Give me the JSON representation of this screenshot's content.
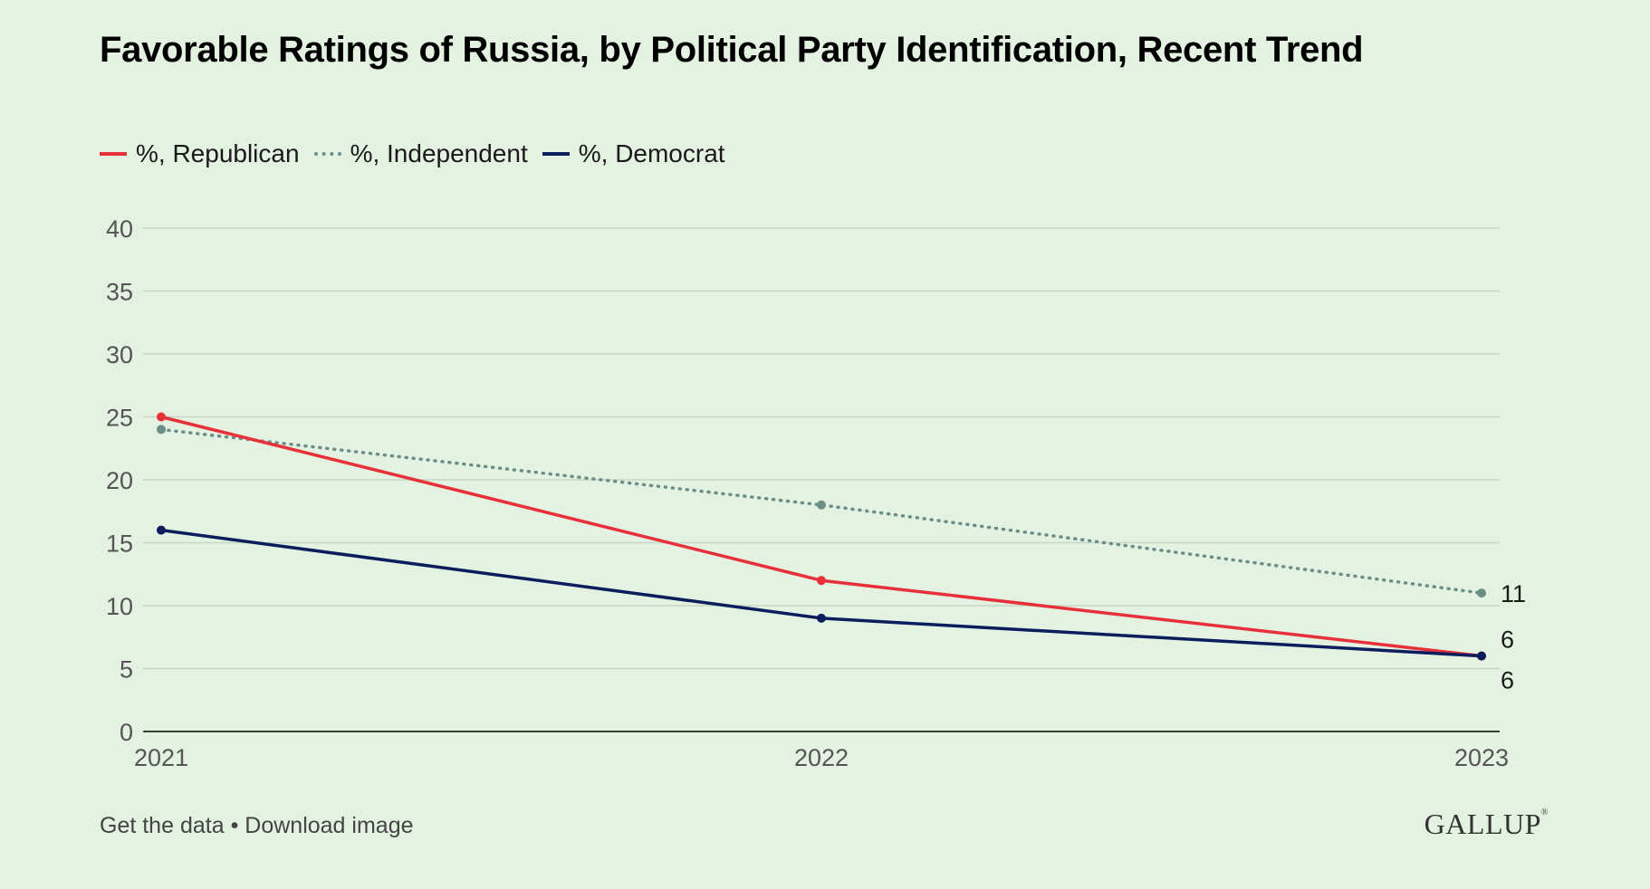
{
  "header": {
    "title": "Favorable Ratings of Russia, by Political Party Identification, Recent Trend"
  },
  "legend": {
    "items": [
      {
        "label": "%, Republican",
        "color": "#e8303a",
        "style": "solid"
      },
      {
        "label": "%, Independent",
        "color": "#6b8e86",
        "style": "dotted"
      },
      {
        "label": "%, Democrat",
        "color": "#0b1d5c",
        "style": "solid"
      }
    ]
  },
  "chart_data": {
    "type": "line",
    "title": "Favorable Ratings of Russia, by Political Party Identification, Recent Trend",
    "x": [
      "2021",
      "2022",
      "2023"
    ],
    "ylim": [
      0,
      40
    ],
    "yticks": [
      "0",
      "5",
      "10",
      "15",
      "20",
      "25",
      "30",
      "35",
      "40"
    ],
    "grid": true,
    "legend_position": "top-left",
    "series": [
      {
        "name": "%, Republican",
        "values": [
          25,
          12,
          6
        ],
        "color": "#e8303a",
        "style": "solid",
        "end_label": "6"
      },
      {
        "name": "%, Independent",
        "values": [
          24,
          18,
          11
        ],
        "color": "#6b8e86",
        "style": "dotted",
        "end_label": "11"
      },
      {
        "name": "%, Democrat",
        "values": [
          16,
          9,
          6
        ],
        "color": "#0b1d5c",
        "style": "solid",
        "end_label": "6"
      }
    ]
  },
  "footer": {
    "get_data": "Get the data",
    "separator": "•",
    "download": "Download image",
    "logo": "GALLUP"
  }
}
